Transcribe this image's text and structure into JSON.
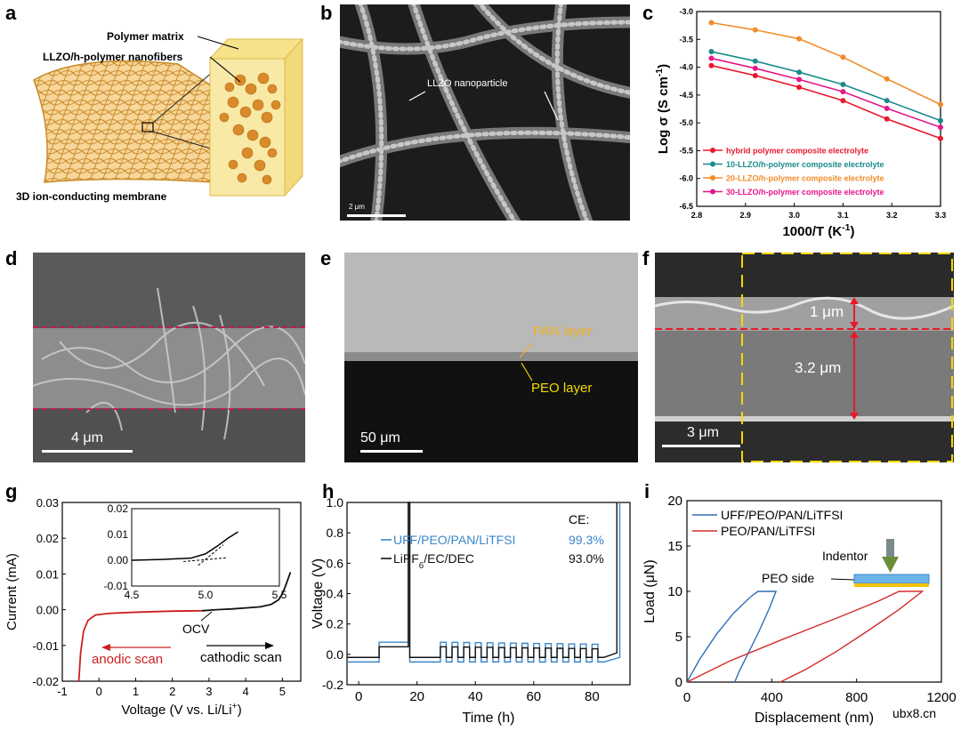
{
  "panels": {
    "a": {
      "letter": "a",
      "label_matrix": "Polymer matrix",
      "label_fibers": "LLZO/h-polymer nanofibers",
      "caption": "3D ion-conducting membrane"
    },
    "b": {
      "letter": "b",
      "annotation": "LLZO nanoparticle",
      "scalebar": "2 μm"
    },
    "d": {
      "letter": "d",
      "scalebar": "4 μm"
    },
    "e": {
      "letter": "e",
      "label_pan": "PAN layer",
      "label_peo": "PEO layer",
      "scalebar": "50 μm"
    },
    "f": {
      "letter": "f",
      "thickness_top": "1 μm",
      "thickness_bottom": "3.2 μm",
      "scalebar": "3 μm"
    }
  },
  "colors": {
    "red": "#e8192c",
    "teal": "#1a8a8a",
    "orange": "#f28c28",
    "magenta": "#e6168a",
    "blue": "#3a86c8",
    "darkred": "#cc1f1f",
    "yellow": "#f5d800"
  },
  "watermark": "ubx8.cn",
  "chart_data": [
    {
      "id": "c",
      "letter": "c",
      "type": "line",
      "xlabel": "1000/T (K",
      "xlabel_sup": "-1",
      "xlabel_end": ")",
      "ylabel": "Log σ (S cm",
      "ylabel_sup": "-1",
      "ylabel_end": ")",
      "xlim": [
        2.8,
        3.3
      ],
      "ylim": [
        -6.5,
        -3.0
      ],
      "xticks": [
        2.8,
        2.9,
        3.0,
        3.1,
        3.2,
        3.3
      ],
      "xtick_labels": [
        "2.8",
        "2.9",
        "3.0",
        "3.1",
        "3.2",
        "3.3"
      ],
      "yticks": [
        -3.0,
        -3.5,
        -4.0,
        -4.5,
        -5.0,
        -5.5,
        -6.0,
        -6.5
      ],
      "ytick_labels": [
        "-3.0",
        "-3.5",
        "-4.0",
        "-4.5",
        "-5.0",
        "-5.5",
        "-6.0",
        "-6.5"
      ],
      "x": [
        2.83,
        2.92,
        3.01,
        3.1,
        3.19,
        3.3
      ],
      "series": [
        {
          "name": "hybrid polymer composite electrolyte",
          "color": "#e8192c",
          "values": [
            -3.97,
            -4.15,
            -4.36,
            -4.6,
            -4.93,
            -5.28
          ]
        },
        {
          "name": "10-LLZO/h-polymer composite electrolyte",
          "color": "#1a8a8a",
          "values": [
            -3.72,
            -3.89,
            -4.09,
            -4.31,
            -4.6,
            -4.96
          ]
        },
        {
          "name": "20-LLZO/h-polymer composite electrolyte",
          "color": "#f28c28",
          "values": [
            -3.2,
            -3.33,
            -3.49,
            -3.82,
            -4.21,
            -4.67
          ]
        },
        {
          "name": "30-LLZO/h-polymer composite electrolyte",
          "color": "#e6168a",
          "values": [
            -3.84,
            -4.02,
            -4.22,
            -4.44,
            -4.74,
            -5.08
          ]
        }
      ]
    },
    {
      "id": "g",
      "letter": "g",
      "type": "line",
      "xlabel": "Voltage (V vs. Li/Li",
      "xlabel_sup": "+",
      "xlabel_end": ")",
      "ylabel": "Current (mA)",
      "xlim": [
        -1,
        5.5
      ],
      "ylim": [
        -0.02,
        0.03
      ],
      "xticks": [
        -1,
        0,
        1,
        2,
        3,
        4,
        5
      ],
      "xtick_labels": [
        "-1",
        "0",
        "1",
        "2",
        "3",
        "4",
        "5"
      ],
      "yticks": [
        -0.02,
        -0.01,
        0.0,
        0.01,
        0.02,
        0.03
      ],
      "ytick_labels": [
        "-0.02",
        "-0.01",
        "0.00",
        "0.01",
        "0.02",
        "0.03"
      ],
      "annotations": {
        "ocv": "OCV",
        "anodic": "anodic scan",
        "cathodic": "cathodic scan"
      },
      "series": [
        {
          "name": "anodic scan",
          "color": "#cc1f1f",
          "x": [
            -0.55,
            -0.5,
            -0.42,
            -0.3,
            -0.1,
            0.3,
            1.0,
            2.0,
            2.8
          ],
          "y": [
            -0.02,
            -0.012,
            -0.006,
            -0.003,
            -0.0015,
            -0.001,
            -0.0007,
            -0.0004,
            -0.0003
          ]
        },
        {
          "name": "cathodic scan",
          "color": "#111111",
          "x": [
            2.8,
            3.2,
            3.6,
            4.0,
            4.4,
            4.7,
            4.9,
            5.0,
            5.08,
            5.15,
            5.22
          ],
          "y": [
            -0.0003,
            0.0,
            0.0002,
            0.0005,
            0.0008,
            0.0015,
            0.0028,
            0.0045,
            0.0065,
            0.0085,
            0.0105
          ]
        }
      ],
      "inset": {
        "xlim": [
          4.5,
          5.5
        ],
        "ylim": [
          -0.01,
          0.02
        ],
        "xticks": [
          4.5,
          5.0,
          5.5
        ],
        "xtick_labels": [
          "4.5",
          "5.0",
          "5.5"
        ],
        "yticks": [
          -0.01,
          0.0,
          0.01,
          0.02
        ],
        "ytick_labels": [
          "-0.01",
          "0.00",
          "0.01",
          "0.02"
        ],
        "x": [
          4.5,
          4.7,
          4.9,
          5.0,
          5.08,
          5.15,
          5.22
        ],
        "y": [
          0.0,
          0.0003,
          0.0008,
          0.0025,
          0.0055,
          0.0085,
          0.011
        ]
      }
    },
    {
      "id": "h",
      "letter": "h",
      "type": "line",
      "xlabel": "Time (h)",
      "ylabel": "Voltage (V)",
      "xlim": [
        -4,
        93
      ],
      "ylim": [
        -0.2,
        1.0
      ],
      "xticks": [
        0,
        20,
        40,
        60,
        80
      ],
      "xtick_labels": [
        "0",
        "20",
        "40",
        "60",
        "80"
      ],
      "yticks": [
        -0.2,
        0.0,
        0.2,
        0.4,
        0.6,
        0.8,
        1.0
      ],
      "ytick_labels": [
        "-0.2",
        "0.0",
        "0.2",
        "0.4",
        "0.6",
        "0.8",
        "1.0"
      ],
      "ce_header": "CE:",
      "series": [
        {
          "name": "UFF/PEO/PAN/LiTFSI",
          "color": "#3a86c8",
          "ce": "99.3%",
          "end_time": 89.5,
          "upper": 0.08,
          "lower": -0.05
        },
        {
          "name": "LiPF",
          "name_sub": "6",
          "name_end": "/EC/DEC",
          "color": "#111111",
          "ce": "93.0%",
          "end_time": 88.5,
          "upper": 0.05,
          "lower": -0.02
        }
      ]
    },
    {
      "id": "i",
      "letter": "i",
      "type": "line",
      "xlabel": "Displacement (nm)",
      "ylabel": "Load (μN)",
      "xlim": [
        0,
        1200
      ],
      "ylim": [
        0,
        20
      ],
      "xticks": [
        0,
        400,
        800,
        1200
      ],
      "xtick_labels": [
        "0",
        "400",
        "800",
        "1200"
      ],
      "yticks": [
        0,
        5,
        10,
        15,
        20
      ],
      "ytick_labels": [
        "0",
        "5",
        "10",
        "15",
        "20"
      ],
      "annotations": {
        "indentor": "Indentor",
        "peo_side": "PEO side"
      },
      "series": [
        {
          "name": "UFF/PEO/PAN/LiTFSI",
          "color": "#2e6fb3",
          "loading": [
            [
              0,
              0
            ],
            [
              60,
              2.5
            ],
            [
              140,
              5.3
            ],
            [
              220,
              7.6
            ],
            [
              300,
              9.4
            ],
            [
              335,
              10
            ]
          ],
          "hold": [
            [
              335,
              10
            ],
            [
              420,
              10
            ]
          ],
          "unloading": [
            [
              420,
              10
            ],
            [
              390,
              8.2
            ],
            [
              340,
              5.6
            ],
            [
              285,
              3
            ],
            [
              245,
              1.1
            ],
            [
              225,
              0
            ]
          ]
        },
        {
          "name": "PEO/PAN/LiTFSI",
          "color": "#d22b2b",
          "loading": [
            [
              0,
              0
            ],
            [
              200,
              2.3
            ],
            [
              450,
              4.7
            ],
            [
              700,
              7.0
            ],
            [
              900,
              8.9
            ],
            [
              1000,
              10
            ]
          ],
          "hold": [
            [
              1000,
              10
            ],
            [
              1110,
              10
            ]
          ],
          "unloading": [
            [
              1110,
              10
            ],
            [
              1000,
              8
            ],
            [
              850,
              5.6
            ],
            [
              700,
              3.3
            ],
            [
              560,
              1.4
            ],
            [
              440,
              0
            ]
          ]
        }
      ]
    }
  ]
}
